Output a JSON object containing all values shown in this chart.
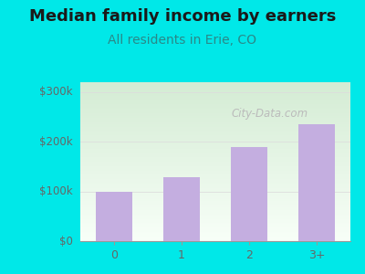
{
  "categories": [
    "0",
    "1",
    "2",
    "3+"
  ],
  "values": [
    100000,
    128000,
    190000,
    235000
  ],
  "bar_color": "#c4aee0",
  "title": "Median family income by earners",
  "subtitle": "All residents in Erie, CO",
  "title_fontsize": 13,
  "subtitle_fontsize": 10,
  "title_color": "#1a1a1a",
  "subtitle_color": "#2a8888",
  "outer_bg": "#00e8e8",
  "plot_bg_top_left": "#d4ecd4",
  "plot_bg_bottom": "#f8fff8",
  "yticks": [
    0,
    100000,
    200000,
    300000
  ],
  "ytick_labels": [
    "$0",
    "$100k",
    "$200k",
    "$300k"
  ],
  "ylim": [
    0,
    320000
  ],
  "watermark_text": "City-Data.com",
  "watermark_color": "#bbbbbb",
  "grid_color": "#dddddd",
  "tick_label_color": "#666666"
}
